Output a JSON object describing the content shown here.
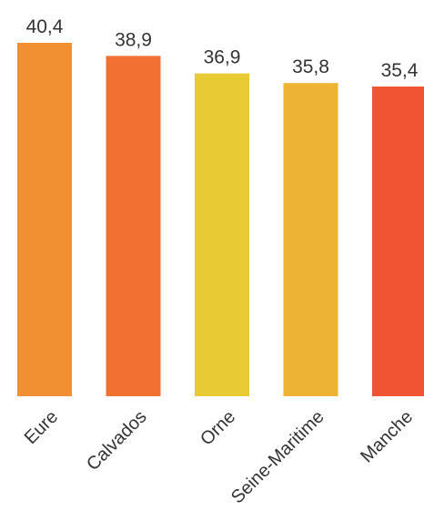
{
  "chart_data": {
    "type": "bar",
    "categories": [
      "Eure",
      "Calvados",
      "Orne",
      "Seine-Maritime",
      "Manche"
    ],
    "values": [
      40.4,
      38.9,
      36.9,
      35.8,
      35.4
    ],
    "value_labels": [
      "40,4",
      "38,9",
      "36,9",
      "35,8",
      "35,4"
    ],
    "bar_colors": [
      "#F09032",
      "#F27132",
      "#E8CA35",
      "#ECB335",
      "#F05432"
    ],
    "title": "",
    "xlabel": "",
    "ylabel": "",
    "ylim": [
      0,
      40.4
    ],
    "grid": false,
    "legend": "none"
  }
}
